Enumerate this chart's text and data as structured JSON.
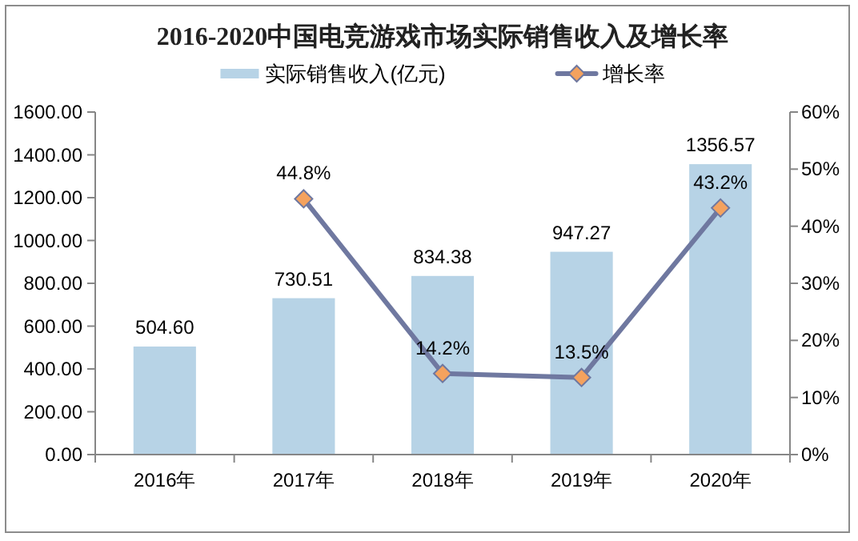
{
  "chart_data": {
    "type": "bar",
    "title": "2016-2020中国电竞游戏市场实际销售收入及增长率",
    "categories": [
      "2016年",
      "2017年",
      "2018年",
      "2019年",
      "2020年"
    ],
    "series": [
      {
        "name": "实际销售收入(亿元)",
        "color": "#b7d3e6",
        "values": [
          504.6,
          730.51,
          834.38,
          947.27,
          1356.57
        ],
        "value_labels": [
          "504.60",
          "730.51",
          "834.38",
          "947.27",
          "1356.57"
        ]
      },
      {
        "name": "增长率",
        "type": "line",
        "axis": "y2",
        "color": "#6f78a0",
        "values": [
          null,
          44.8,
          14.2,
          13.5,
          43.2
        ],
        "value_labels": [
          null,
          "44.8%",
          "14.2%",
          "13.5%",
          "43.2%"
        ]
      }
    ],
    "ylim": [
      0,
      1600
    ],
    "yticks": [
      {
        "value": 0,
        "label": "0.00"
      },
      {
        "value": 200,
        "label": "200.00"
      },
      {
        "value": 400,
        "label": "400.00"
      },
      {
        "value": 600,
        "label": "600.00"
      },
      {
        "value": 800,
        "label": "800.00"
      },
      {
        "value": 1000,
        "label": "1000.00"
      },
      {
        "value": 1200,
        "label": "1200.00"
      },
      {
        "value": 1400,
        "label": "1400.00"
      },
      {
        "value": 1600,
        "label": "1600.00"
      }
    ],
    "y2lim": [
      0,
      60
    ],
    "y2ticks": [
      {
        "value": 0,
        "label": "0%"
      },
      {
        "value": 10,
        "label": "10%"
      },
      {
        "value": 20,
        "label": "20%"
      },
      {
        "value": 30,
        "label": "30%"
      },
      {
        "value": 40,
        "label": "40%"
      },
      {
        "value": 50,
        "label": "50%"
      },
      {
        "value": 60,
        "label": "60%"
      }
    ],
    "legend": "top",
    "marker": "diamond"
  }
}
